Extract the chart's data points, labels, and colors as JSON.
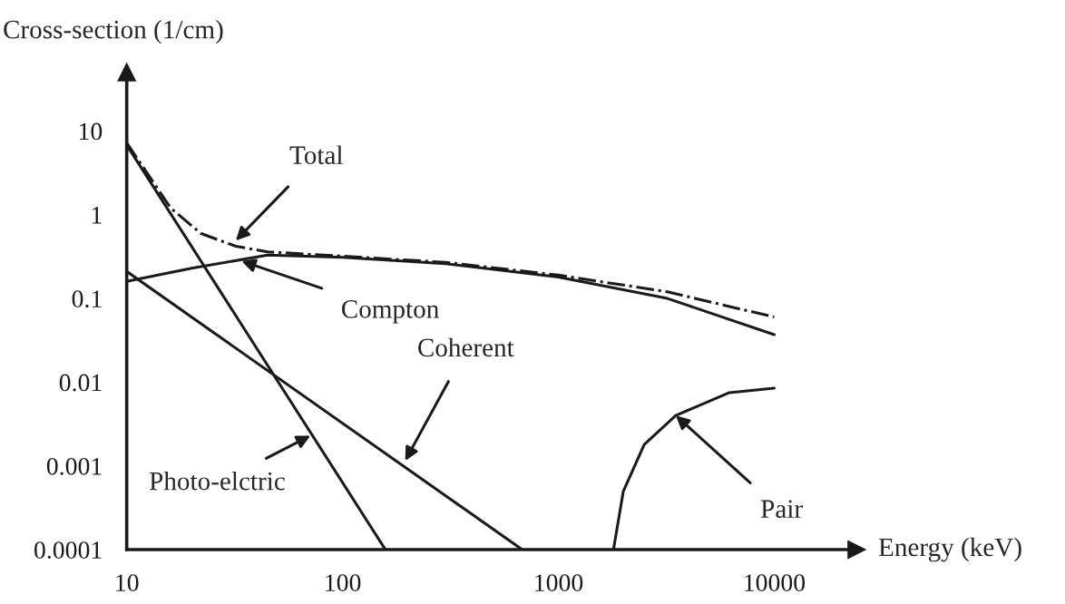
{
  "chart_data": {
    "type": "line",
    "xlabel": "Energy (keV)",
    "ylabel": "Cross-section (1/cm)",
    "log": "xy",
    "xlim": [
      10,
      24000
    ],
    "ylim": [
      0.0001,
      50
    ],
    "xticks": [
      10,
      100,
      1000,
      10000
    ],
    "yticks": [
      0.0001,
      0.001,
      0.01,
      0.1,
      1,
      10
    ],
    "grid": false,
    "legend": false,
    "marker": "none",
    "series": [
      {
        "color": "#1a1a1a",
        "line_style": "solid",
        "x": [
          10,
          158
        ],
        "values": [
          6.8,
          0.0001
        ]
      },
      {
        "color": "#1a1a1a",
        "line_style": "solid",
        "x": [
          10,
          680
        ],
        "values": [
          0.21,
          0.0001
        ]
      },
      {
        "color": "#1a1a1a",
        "line_style": "solid",
        "x": [
          10,
          20,
          45,
          100,
          300,
          1000,
          3200,
          10000
        ],
        "values": [
          0.16,
          0.23,
          0.33,
          0.31,
          0.26,
          0.18,
          0.1,
          0.037
        ]
      },
      {
        "color": "#1a1a1a",
        "line_style": "dashdot",
        "x": [
          10,
          16,
          22,
          32,
          45,
          100,
          300,
          1000,
          3200,
          10000
        ],
        "values": [
          7.2,
          1.2,
          0.6,
          0.42,
          0.36,
          0.32,
          0.27,
          0.19,
          0.12,
          0.06
        ]
      },
      {
        "color": "#1a1a1a",
        "line_style": "solid",
        "x": [
          1800,
          2000,
          2500,
          3500,
          6200,
          10000
        ],
        "values": [
          0.0001,
          0.0005,
          0.0018,
          0.004,
          0.0075,
          0.0085
        ]
      }
    ],
    "annotations": [
      {
        "text": "Total",
        "x": 32,
        "y": 0.49
      },
      {
        "text": "Compton",
        "x": 34,
        "y": 0.28
      },
      {
        "text": "Coherent",
        "x": 195,
        "y": 0.00115
      },
      {
        "text": "Photo-elctric",
        "x": 71,
        "y": 0.0023
      },
      {
        "text": "Pair",
        "x": 3500,
        "y": 0.004
      }
    ]
  }
}
